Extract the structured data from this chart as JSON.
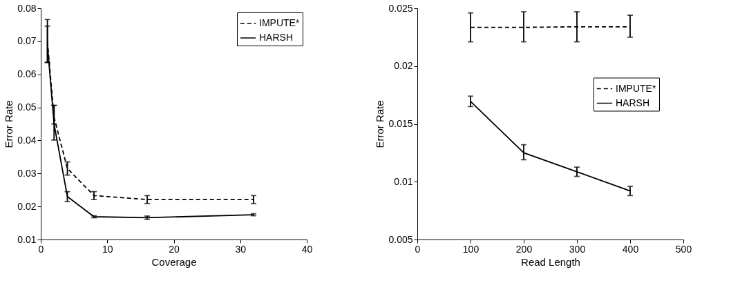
{
  "chart_data": [
    {
      "type": "line",
      "xlabel": "Coverage",
      "ylabel": "Error Rate",
      "x": [
        1,
        2,
        4,
        8,
        16,
        32
      ],
      "xlim": [
        0,
        40
      ],
      "xticks": [
        0,
        10,
        20,
        30,
        40
      ],
      "ylim": [
        0.01,
        0.08
      ],
      "yticks": [
        0.01,
        0.02,
        0.03,
        0.04,
        0.05,
        0.06,
        0.07,
        0.08
      ],
      "grid": false,
      "legend": "top right",
      "marker": "none",
      "series": [
        {
          "name": "IMPUTE*",
          "color": "#000000",
          "line_style": "dashed",
          "values": [
            0.07,
            0.047,
            0.0315,
            0.0233,
            0.0221,
            0.0221
          ],
          "errors": [
            [
              0.0636,
              0.0766
            ],
            [
              0.045,
              0.0506
            ],
            0.002,
            0.0012,
            0.0012,
            0.0012
          ]
        },
        {
          "name": "HARSH",
          "color": "#000000",
          "line_style": "solid",
          "values": [
            0.069,
            0.045,
            0.023,
            0.0169,
            0.0166,
            0.0175
          ],
          "errors": [
            [
              0.0636,
              0.0746
            ],
            [
              0.0401,
              0.0506
            ],
            0.0015,
            0.0003,
            0.0005,
            0.0003
          ]
        }
      ]
    },
    {
      "type": "line",
      "xlabel": "Read Length",
      "ylabel": "Error Rate",
      "x": [
        100,
        200,
        300,
        400
      ],
      "xlim": [
        0,
        500
      ],
      "xticks": [
        0,
        100,
        200,
        300,
        400,
        500
      ],
      "ylim": [
        0.005,
        0.025
      ],
      "yticks": [
        0.005,
        0.01,
        0.015,
        0.02,
        0.025
      ],
      "grid": false,
      "legend": "right",
      "marker": "none",
      "series": [
        {
          "name": "IMPUTE*",
          "color": "#000000",
          "line_style": "dashed",
          "values": [
            0.02335,
            0.02335,
            0.0234,
            0.0234
          ],
          "errors": [
            [
              0.0221,
              0.0246
            ],
            [
              0.0221,
              0.0247
            ],
            [
              0.0221,
              0.0247
            ],
            [
              0.0225,
              0.0244
            ]
          ]
        },
        {
          "name": "HARSH",
          "color": "#000000",
          "line_style": "solid",
          "values": [
            0.01695,
            0.0125,
            0.01086,
            0.0092
          ],
          "errors": [
            [
              0.0165,
              0.0174
            ],
            [
              0.0119,
              0.0132
            ],
            0.0004,
            0.0004
          ]
        }
      ]
    }
  ]
}
